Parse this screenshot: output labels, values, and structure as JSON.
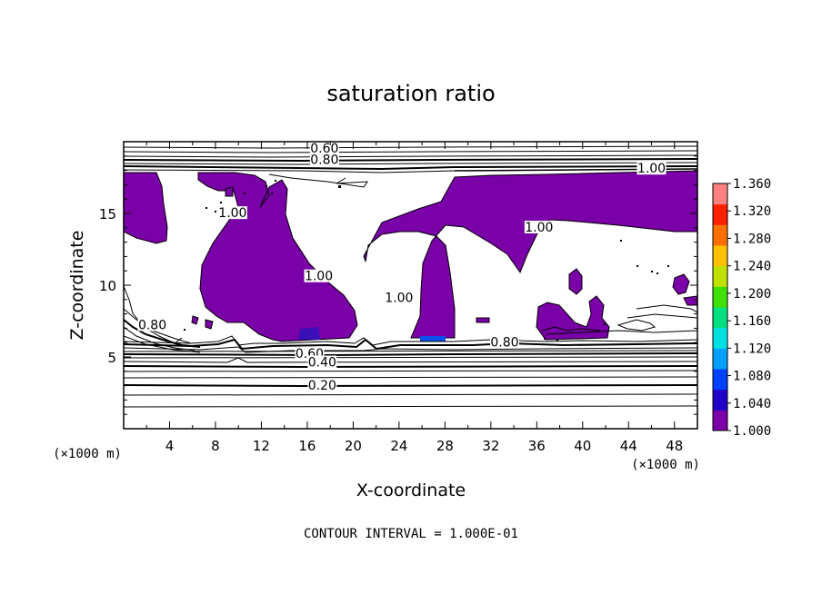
{
  "chart_data": {
    "type": "contour",
    "title": "saturation ratio",
    "xlabel": "X-coordinate",
    "ylabel": "Z-coordinate",
    "x_unit_label": "(×1000 m)",
    "z_unit_label": "(×1000 m)",
    "xlim": [
      0,
      50
    ],
    "ylim": [
      0,
      20
    ],
    "x_ticks": [
      4,
      8,
      12,
      16,
      20,
      24,
      28,
      32,
      36,
      40,
      44,
      48
    ],
    "y_ticks": [
      5,
      10,
      15
    ],
    "footer": "CONTOUR INTERVAL = 1.000E-01",
    "contour_labels": [
      {
        "text": "0.60",
        "x": 17.5,
        "z": 19.3
      },
      {
        "text": "0.80",
        "x": 17.5,
        "z": 18.5
      },
      {
        "text": "1.00",
        "x": 46.0,
        "z": 17.9
      },
      {
        "text": "1.00",
        "x": 9.5,
        "z": 14.8
      },
      {
        "text": "1.00",
        "x": 36.2,
        "z": 13.8
      },
      {
        "text": "1.00",
        "x": 17.0,
        "z": 10.4
      },
      {
        "text": "1.00",
        "x": 24.0,
        "z": 8.9
      },
      {
        "text": "0.80",
        "x": 2.5,
        "z": 7.0
      },
      {
        "text": "0.80",
        "x": 33.2,
        "z": 5.8
      },
      {
        "text": "0.60",
        "x": 16.2,
        "z": 5.0
      },
      {
        "text": "0.40",
        "x": 17.3,
        "z": 4.4
      },
      {
        "text": "0.20",
        "x": 17.3,
        "z": 2.8
      }
    ],
    "colorbar": {
      "labels": [
        "1.360",
        "1.320",
        "1.280",
        "1.240",
        "1.200",
        "1.160",
        "1.120",
        "1.080",
        "1.040",
        "1.000"
      ],
      "min": 1.0,
      "max": 1.36,
      "colors": [
        "#7a00a8",
        "#2000c8",
        "#0040ff",
        "#00a0ff",
        "#00e0e0",
        "#00e080",
        "#40e000",
        "#c0e000",
        "#ffc000",
        "#ff7000",
        "#ff2000",
        "#ff8080"
      ]
    },
    "fill_color": "#7a00a8"
  }
}
